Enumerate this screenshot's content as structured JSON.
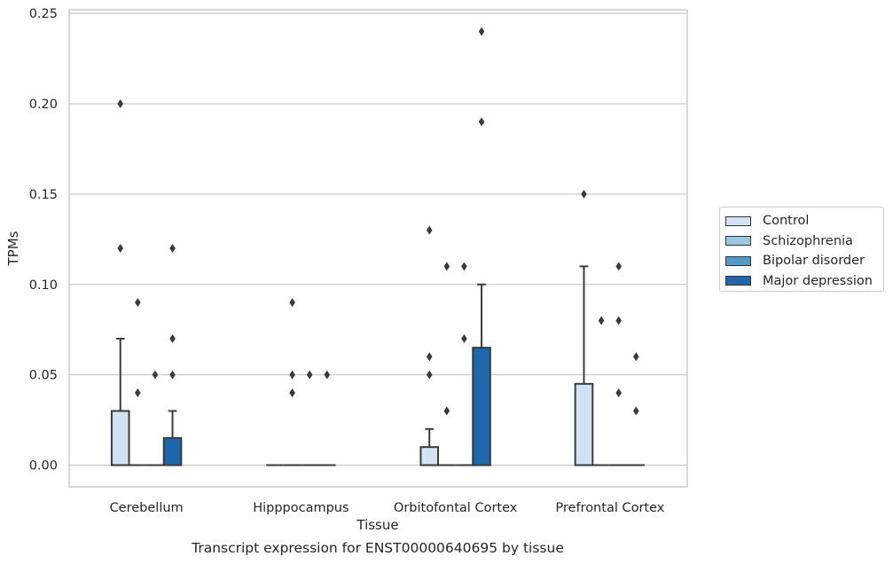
{
  "chart_data": {
    "type": "box",
    "title": "Transcript expression for ENST00000640695 by tissue",
    "xlabel": "Tissue",
    "ylabel": "TPMs",
    "ylim": [
      -0.012,
      0.252
    ],
    "yticks": [
      "0.00",
      "0.05",
      "0.10",
      "0.15",
      "0.20",
      "0.25"
    ],
    "ytick_values": [
      0,
      0.05,
      0.1,
      0.15,
      0.2,
      0.25
    ],
    "categories": [
      "Cerebellum",
      "Hipppocampus",
      "Orbitofontal Cortex",
      "Prefrontal Cortex"
    ],
    "grid": true,
    "legend_position": "right",
    "series": [
      {
        "name": "Control",
        "color": "#d1e3f3"
      },
      {
        "name": "Schizophrenia",
        "color": "#9ac8e1"
      },
      {
        "name": "Bipolar disorder",
        "color": "#5299c8"
      },
      {
        "name": "Major depression",
        "color": "#1f67ac"
      }
    ],
    "boxes": [
      [
        {
          "q1": 0,
          "median": 0,
          "q3": 0.03,
          "whisker_low": 0,
          "whisker_high": 0.07,
          "outliers": [
            0.12,
            0.2
          ]
        },
        {
          "q1": 0,
          "median": 0,
          "q3": 0,
          "whisker_low": 0,
          "whisker_high": 0,
          "outliers": [
            0.04,
            0.09
          ]
        },
        {
          "q1": 0,
          "median": 0,
          "q3": 0,
          "whisker_low": 0,
          "whisker_high": 0,
          "outliers": [
            0.05
          ]
        },
        {
          "q1": 0,
          "median": 0,
          "q3": 0.015,
          "whisker_low": 0,
          "whisker_high": 0.03,
          "outliers": [
            0.05,
            0.07,
            0.12
          ]
        }
      ],
      [
        {
          "q1": 0,
          "median": 0,
          "q3": 0,
          "whisker_low": 0,
          "whisker_high": 0,
          "outliers": []
        },
        {
          "q1": 0,
          "median": 0,
          "q3": 0,
          "whisker_low": 0,
          "whisker_high": 0,
          "outliers": [
            0.04,
            0.05,
            0.09
          ]
        },
        {
          "q1": 0,
          "median": 0,
          "q3": 0,
          "whisker_low": 0,
          "whisker_high": 0,
          "outliers": [
            0.05
          ]
        },
        {
          "q1": 0,
          "median": 0,
          "q3": 0,
          "whisker_low": 0,
          "whisker_high": 0,
          "outliers": [
            0.05
          ]
        }
      ],
      [
        {
          "q1": 0,
          "median": 0,
          "q3": 0.01,
          "whisker_low": 0,
          "whisker_high": 0.02,
          "outliers": [
            0.05,
            0.06,
            0.13
          ]
        },
        {
          "q1": 0,
          "median": 0,
          "q3": 0,
          "whisker_low": 0,
          "whisker_high": 0,
          "outliers": [
            0.03,
            0.11
          ]
        },
        {
          "q1": 0,
          "median": 0,
          "q3": 0,
          "whisker_low": 0,
          "whisker_high": 0,
          "outliers": [
            0.07,
            0.11
          ]
        },
        {
          "q1": 0,
          "median": 0,
          "q3": 0.065,
          "whisker_low": 0,
          "whisker_high": 0.1,
          "outliers": [
            0.19,
            0.24
          ]
        }
      ],
      [
        {
          "q1": 0,
          "median": 0,
          "q3": 0.045,
          "whisker_low": 0,
          "whisker_high": 0.11,
          "outliers": [
            0.15
          ]
        },
        {
          "q1": 0,
          "median": 0,
          "q3": 0,
          "whisker_low": 0,
          "whisker_high": 0,
          "outliers": [
            0.08
          ]
        },
        {
          "q1": 0,
          "median": 0,
          "q3": 0,
          "whisker_low": 0,
          "whisker_high": 0,
          "outliers": [
            0.04,
            0.08,
            0.11
          ]
        },
        {
          "q1": 0,
          "median": 0,
          "q3": 0,
          "whisker_low": 0,
          "whisker_high": 0,
          "outliers": [
            0.03,
            0.06
          ]
        }
      ]
    ]
  }
}
